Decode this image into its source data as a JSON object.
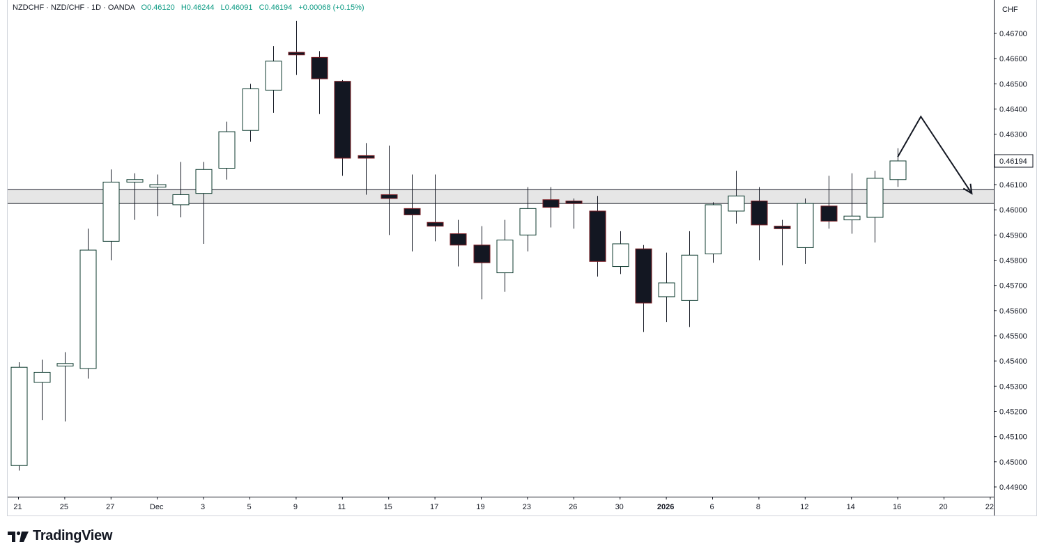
{
  "header": {
    "symbol_line": "NZDCHF · NZD/CHF · 1D · OANDA",
    "open": "O0.46120",
    "high": "H0.46244",
    "low": "L0.46091",
    "close": "C0.46194",
    "change": "+0.00068 (+0.15%)"
  },
  "axis": {
    "currency": "CHF",
    "current_price_label": "0.46194"
  },
  "branding": {
    "name": "TradingView"
  },
  "colors": {
    "up_fill": "#ffffff",
    "down_fill": "#131722",
    "candle_border": "#0c3a2e",
    "down_border": "#7a1b22",
    "zone_fill": "#e6e6e6",
    "zone_line": "#131722",
    "axis_line": "#d0d3da",
    "text": "#131722"
  },
  "chart_data": {
    "type": "candlestick",
    "y_ticks": [
      "0.46700",
      "0.46600",
      "0.46500",
      "0.46400",
      "0.46300",
      "0.46194",
      "0.46100",
      "0.46000",
      "0.45900",
      "0.45800",
      "0.45700",
      "0.45600",
      "0.45500",
      "0.45400",
      "0.45300",
      "0.45200",
      "0.45100",
      "0.45000",
      "0.44900"
    ],
    "x_ticks": [
      "21",
      "25",
      "27",
      "Dec",
      "3",
      "5",
      "9",
      "11",
      "15",
      "17",
      "19",
      "23",
      "26",
      "30",
      "2026",
      "6",
      "8",
      "12",
      "14",
      "16",
      "20",
      "22"
    ],
    "x_tick_bold": [
      "2026"
    ],
    "candles": [
      {
        "o": 0.44985,
        "h": 0.45395,
        "l": 0.44965,
        "c": 0.45375
      },
      {
        "o": 0.45315,
        "h": 0.45405,
        "l": 0.45165,
        "c": 0.45355
      },
      {
        "o": 0.4538,
        "h": 0.45435,
        "l": 0.4516,
        "c": 0.4539
      },
      {
        "o": 0.4537,
        "h": 0.45925,
        "l": 0.4533,
        "c": 0.4584
      },
      {
        "o": 0.45875,
        "h": 0.4616,
        "l": 0.458,
        "c": 0.4611
      },
      {
        "o": 0.4611,
        "h": 0.46145,
        "l": 0.4596,
        "c": 0.4612
      },
      {
        "o": 0.4609,
        "h": 0.4614,
        "l": 0.45975,
        "c": 0.461
      },
      {
        "o": 0.4602,
        "h": 0.4619,
        "l": 0.4597,
        "c": 0.4606
      },
      {
        "o": 0.46065,
        "h": 0.4619,
        "l": 0.45865,
        "c": 0.4616
      },
      {
        "o": 0.46165,
        "h": 0.4635,
        "l": 0.4612,
        "c": 0.4631
      },
      {
        "o": 0.46315,
        "h": 0.465,
        "l": 0.4627,
        "c": 0.4648
      },
      {
        "o": 0.46475,
        "h": 0.4665,
        "l": 0.46385,
        "c": 0.4659
      },
      {
        "o": 0.46625,
        "h": 0.4675,
        "l": 0.46535,
        "c": 0.46615
      },
      {
        "o": 0.46605,
        "h": 0.4663,
        "l": 0.4638,
        "c": 0.4652
      },
      {
        "o": 0.4651,
        "h": 0.46515,
        "l": 0.46135,
        "c": 0.46205
      },
      {
        "o": 0.46215,
        "h": 0.46265,
        "l": 0.4606,
        "c": 0.46205
      },
      {
        "o": 0.4606,
        "h": 0.46255,
        "l": 0.459,
        "c": 0.46045
      },
      {
        "o": 0.46005,
        "h": 0.4614,
        "l": 0.45835,
        "c": 0.4598
      },
      {
        "o": 0.4595,
        "h": 0.4614,
        "l": 0.45875,
        "c": 0.45935
      },
      {
        "o": 0.45905,
        "h": 0.4596,
        "l": 0.45775,
        "c": 0.4586
      },
      {
        "o": 0.4586,
        "h": 0.45935,
        "l": 0.45645,
        "c": 0.4579
      },
      {
        "o": 0.4575,
        "h": 0.4596,
        "l": 0.45675,
        "c": 0.4588
      },
      {
        "o": 0.459,
        "h": 0.4609,
        "l": 0.45835,
        "c": 0.46005
      },
      {
        "o": 0.4604,
        "h": 0.4609,
        "l": 0.4593,
        "c": 0.4601
      },
      {
        "o": 0.46035,
        "h": 0.46045,
        "l": 0.45925,
        "c": 0.46025
      },
      {
        "o": 0.45995,
        "h": 0.46055,
        "l": 0.45735,
        "c": 0.45795
      },
      {
        "o": 0.45775,
        "h": 0.45915,
        "l": 0.45745,
        "c": 0.45865
      },
      {
        "o": 0.45845,
        "h": 0.4586,
        "l": 0.45515,
        "c": 0.4563
      },
      {
        "o": 0.45655,
        "h": 0.4583,
        "l": 0.45555,
        "c": 0.4571
      },
      {
        "o": 0.4564,
        "h": 0.45915,
        "l": 0.45535,
        "c": 0.4582
      },
      {
        "o": 0.45825,
        "h": 0.4603,
        "l": 0.4579,
        "c": 0.4602
      },
      {
        "o": 0.45995,
        "h": 0.46155,
        "l": 0.45945,
        "c": 0.46055
      },
      {
        "o": 0.46035,
        "h": 0.4609,
        "l": 0.458,
        "c": 0.4594
      },
      {
        "o": 0.45935,
        "h": 0.4596,
        "l": 0.4578,
        "c": 0.45925
      },
      {
        "o": 0.4585,
        "h": 0.46045,
        "l": 0.45785,
        "c": 0.46025
      },
      {
        "o": 0.46015,
        "h": 0.46135,
        "l": 0.45925,
        "c": 0.45955
      },
      {
        "o": 0.4596,
        "h": 0.46145,
        "l": 0.45905,
        "c": 0.45975
      },
      {
        "o": 0.4597,
        "h": 0.46155,
        "l": 0.4587,
        "c": 0.46125
      },
      {
        "o": 0.4612,
        "h": 0.46244,
        "l": 0.46091,
        "c": 0.46194
      }
    ],
    "support_zone": {
      "top": 0.4608,
      "bottom": 0.46025
    },
    "projection_path": [
      [
        0.4621,
        38.0
      ],
      [
        0.4637,
        39.0
      ],
      [
        0.46065,
        41.2
      ]
    ]
  }
}
